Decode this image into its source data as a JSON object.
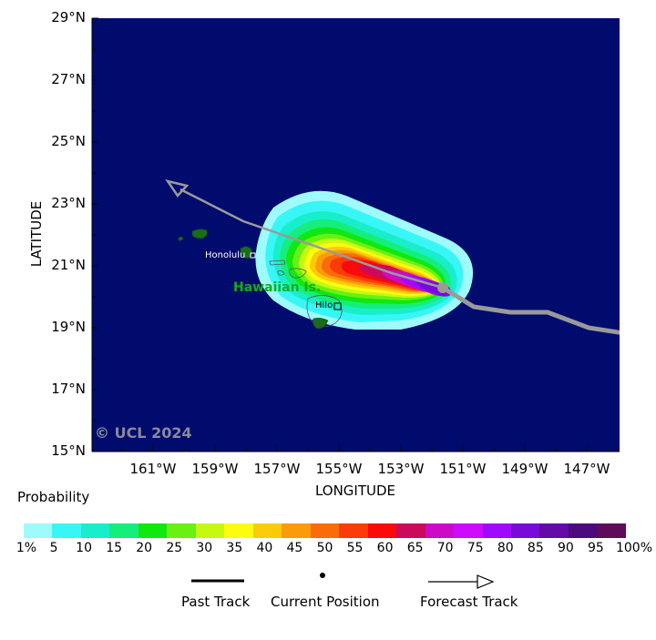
{
  "map": {
    "y_ticks": [
      "29°N",
      "27°N",
      "25°N",
      "23°N",
      "21°N",
      "19°N",
      "17°N",
      "15°N"
    ],
    "x_ticks": [
      "161°W",
      "159°W",
      "157°W",
      "155°W",
      "153°W",
      "151°W",
      "149°W",
      "147°W"
    ],
    "xlabel": "LONGITUDE",
    "ylabel": "LATITUDE",
    "copyright": "© UCL 2024",
    "places": {
      "honolulu": "Honolulu",
      "hilo": "Hilo",
      "islands": "Hawaiian Is."
    },
    "ocean_color": "#000b6e",
    "land_color": "#1a6b1a",
    "track_color": "#9a9a9a"
  },
  "legend": {
    "title": "Probability",
    "colors": [
      "#9ffbfb",
      "#39f6f6",
      "#19eecb",
      "#16ee7c",
      "#10e810",
      "#6af012",
      "#c7f812",
      "#fcfc10",
      "#fbcb0a",
      "#fb9b0a",
      "#fb6b0a",
      "#fb3b0a",
      "#fb0a0a",
      "#cc0a5b",
      "#cc0ac8",
      "#cc0afc",
      "#a00afc",
      "#7a0ad8",
      "#640aa6",
      "#4c0a7c",
      "#600a5c"
    ],
    "labels": [
      "1%",
      "5",
      "10",
      "15",
      "20",
      "25",
      "30",
      "35",
      "40",
      "45",
      "50",
      "55",
      "60",
      "65",
      "70",
      "75",
      "80",
      "85",
      "90",
      "95",
      "100%"
    ],
    "key": {
      "past": "Past Track",
      "current": "Current Position",
      "forecast": "Forecast Track"
    }
  }
}
